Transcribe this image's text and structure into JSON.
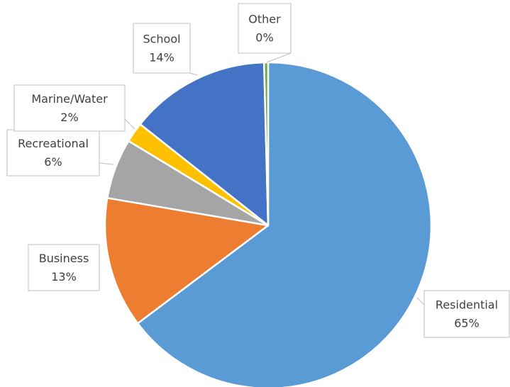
{
  "chart_data": {
    "type": "pie",
    "categories": [
      "Residential",
      "Business",
      "Recreational",
      "Marine/Water",
      "School",
      "Other"
    ],
    "values": [
      65,
      13,
      6,
      2,
      14,
      0.4
    ],
    "value_labels": [
      "65%",
      "13%",
      "6%",
      "2%",
      "14%",
      "0%"
    ],
    "colors": [
      "#5b9bd5",
      "#ed7d31",
      "#a5a5a5",
      "#ffc000",
      "#4472c4",
      "#70ad47"
    ]
  }
}
